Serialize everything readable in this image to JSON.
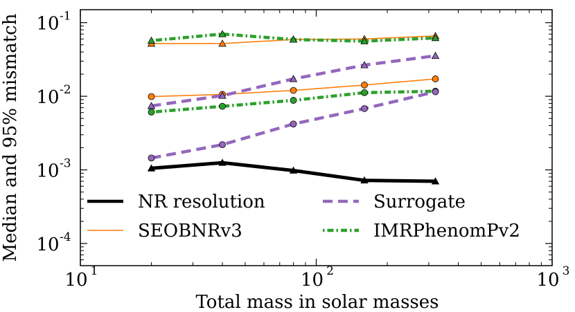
{
  "chart_data": {
    "type": "line",
    "xscale": "log",
    "yscale": "log",
    "xlim": [
      10,
      1000
    ],
    "ylim": [
      5e-05,
      0.15
    ],
    "xlabel": "Total mass in solar masses",
    "ylabel": "Median and 95% mismatch",
    "x_ticks": [
      {
        "value": 10,
        "base": "10",
        "exp": "1"
      },
      {
        "value": 100,
        "base": "10",
        "exp": "2"
      },
      {
        "value": 1000,
        "base": "10",
        "exp": "3"
      }
    ],
    "y_ticks": [
      {
        "value": 0.0001,
        "base": "10",
        "exp": "-4"
      },
      {
        "value": 0.001,
        "base": "10",
        "exp": "-3"
      },
      {
        "value": 0.01,
        "base": "10",
        "exp": "-2"
      },
      {
        "value": 0.1,
        "base": "10",
        "exp": "-1"
      }
    ],
    "x": [
      20,
      40,
      80,
      160,
      320
    ],
    "series": [
      {
        "name": "NR resolution",
        "legend_label": "NR resolution",
        "color": "#000000",
        "dash": "",
        "style": "thick",
        "curves": [
          {
            "stat": "median",
            "marker": "triangle",
            "values": [
              0.00105,
              0.00125,
              0.00098,
              0.00072,
              0.0007
            ]
          }
        ]
      },
      {
        "name": "Surrogate",
        "legend_label": "Surrogate",
        "color": "#9467bd",
        "dash": "dashed",
        "style": "medium",
        "curves": [
          {
            "stat": "median",
            "marker": "circle",
            "values": [
              0.00145,
              0.0022,
              0.0042,
              0.0068,
              0.0115
            ]
          },
          {
            "stat": "95%",
            "marker": "triangle",
            "values": [
              0.0074,
              0.0102,
              0.0172,
              0.0265,
              0.0355
            ]
          }
        ]
      },
      {
        "name": "SEOBNRv3",
        "legend_label": "SEOBNRv3",
        "color": "#ff7f0e",
        "dash": "",
        "style": "thin",
        "curves": [
          {
            "stat": "median",
            "marker": "circle",
            "values": [
              0.0099,
              0.0106,
              0.012,
              0.0142,
              0.0172
            ]
          },
          {
            "stat": "95%",
            "marker": "triangle",
            "values": [
              0.052,
              0.052,
              0.059,
              0.06,
              0.066
            ]
          }
        ]
      },
      {
        "name": "IMRPhenomPv2",
        "legend_label": "IMRPhenomPv2",
        "color": "#2ca02c",
        "dash": "dashdot",
        "style": "medium",
        "curves": [
          {
            "stat": "median",
            "marker": "circle",
            "values": [
              0.0061,
              0.0073,
              0.0088,
              0.0112,
              0.0117
            ]
          },
          {
            "stat": "95%",
            "marker": "triangle",
            "values": [
              0.057,
              0.07,
              0.059,
              0.056,
              0.062
            ]
          }
        ]
      }
    ],
    "legend": {
      "placement": "lower-center",
      "order": [
        "NR resolution",
        "Surrogate",
        "SEOBNRv3",
        "IMRPhenomPv2"
      ],
      "columns": 2
    }
  }
}
